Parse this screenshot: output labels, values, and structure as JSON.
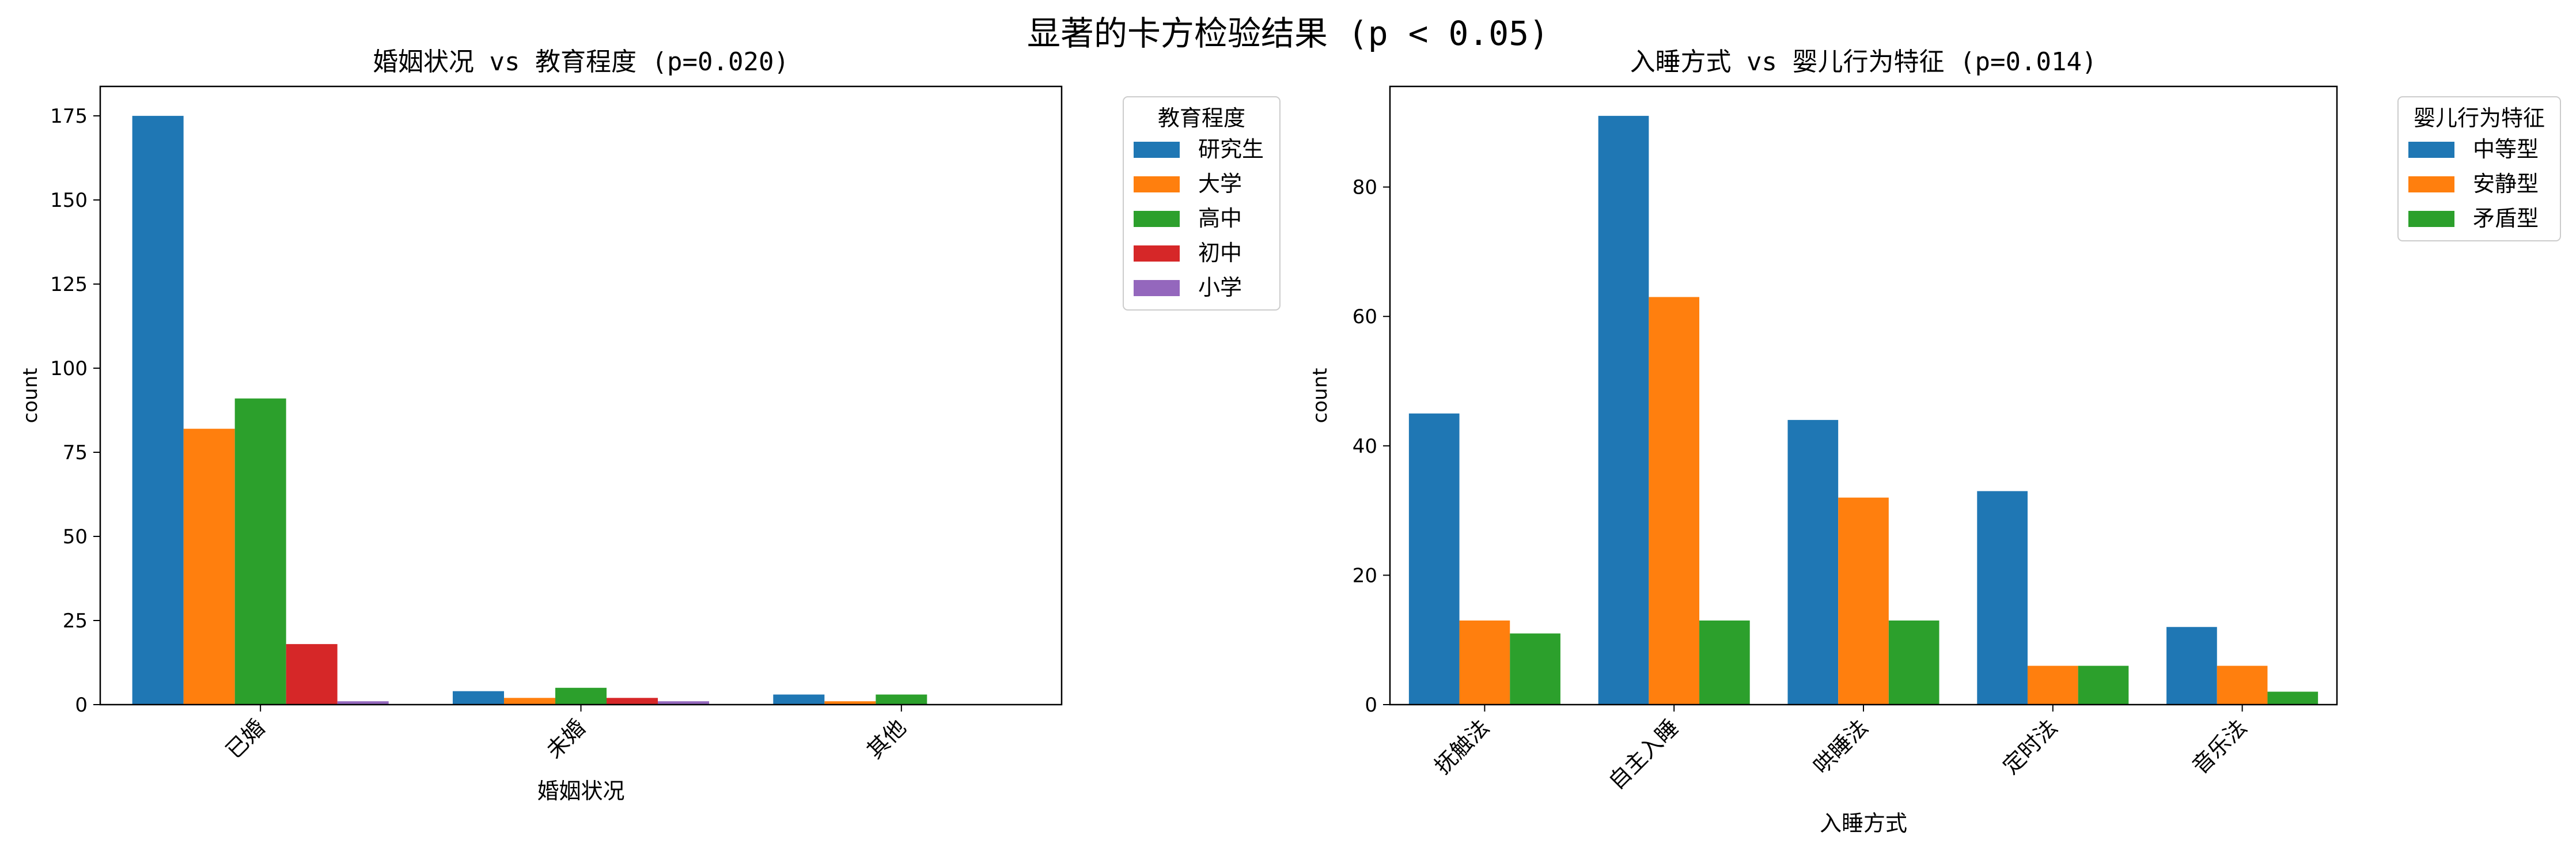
{
  "figure": {
    "suptitle": "显著的卡方检验结果 (p < 0.05)"
  },
  "chart_data": [
    {
      "type": "bar",
      "title": "婚姻状况 vs 教育程度 (p=0.020)",
      "xlabel": "婚姻状况",
      "ylabel": "count",
      "categories": [
        "已婚",
        "未婚",
        "其他"
      ],
      "ylim": [
        0,
        183.75
      ],
      "yticks": [
        0,
        25,
        50,
        75,
        100,
        125,
        150,
        175
      ],
      "grid": false,
      "legend": {
        "title": "教育程度",
        "placement": "outside-top-right"
      },
      "series": [
        {
          "name": "研究生",
          "color": "#1f77b4",
          "values": [
            175,
            4,
            3
          ]
        },
        {
          "name": "大学",
          "color": "#ff7f0e",
          "values": [
            82,
            2,
            1
          ]
        },
        {
          "name": "高中",
          "color": "#2ca02c",
          "values": [
            91,
            5,
            3
          ]
        },
        {
          "name": "初中",
          "color": "#d62728",
          "values": [
            18,
            2,
            0
          ]
        },
        {
          "name": "小学",
          "color": "#9467bd",
          "values": [
            1,
            1,
            0
          ]
        }
      ]
    },
    {
      "type": "bar",
      "title": "入睡方式 vs 婴儿行为特征 (p=0.014)",
      "xlabel": "入睡方式",
      "ylabel": "count",
      "categories": [
        "抚触法",
        "自主入睡",
        "哄睡法",
        "定时法",
        "音乐法"
      ],
      "ylim": [
        0,
        95.55
      ],
      "yticks": [
        0,
        20,
        40,
        60,
        80
      ],
      "grid": false,
      "legend": {
        "title": "婴儿行为特征",
        "placement": "outside-top-right"
      },
      "series": [
        {
          "name": "中等型",
          "color": "#1f77b4",
          "values": [
            45,
            91,
            44,
            33,
            12
          ]
        },
        {
          "name": "安静型",
          "color": "#ff7f0e",
          "values": [
            13,
            63,
            32,
            6,
            6
          ]
        },
        {
          "name": "矛盾型",
          "color": "#2ca02c",
          "values": [
            11,
            13,
            13,
            6,
            2
          ]
        }
      ]
    }
  ]
}
